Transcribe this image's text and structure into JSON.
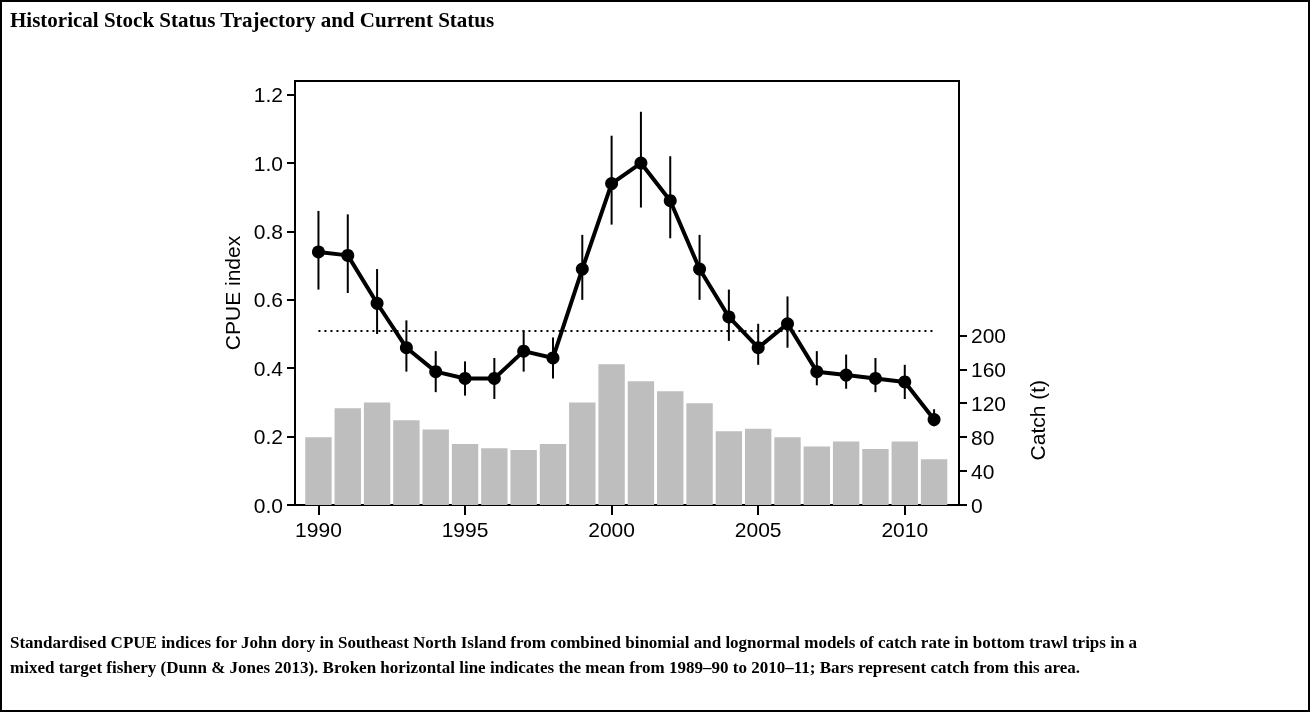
{
  "chart_data": {
    "type": "line",
    "title": "Historical Stock Status Trajectory and Current Status",
    "ylabel": "CPUE index",
    "y2label": "Catch (t)",
    "x": [
      1990,
      1991,
      1992,
      1993,
      1994,
      1995,
      1996,
      1997,
      1998,
      1999,
      2000,
      2001,
      2002,
      2003,
      2004,
      2005,
      2006,
      2007,
      2008,
      2009,
      2010,
      2011
    ],
    "xlim": [
      1989.2,
      2011.85
    ],
    "xticks": [
      1990,
      1995,
      2000,
      2005,
      2010
    ],
    "ylim": [
      0,
      1.24
    ],
    "yticks": [
      {
        "value": 0,
        "label": "0.0"
      },
      0.2,
      0.4,
      0.6,
      0.8,
      {
        "value": 1,
        "label": "1.0"
      },
      1.2
    ],
    "y2lim": [
      0,
      500
    ],
    "y2ticks": [
      0,
      40,
      80,
      120,
      160,
      200
    ],
    "series": [
      {
        "type": "bar",
        "axis": "y2",
        "color": "#bebebe",
        "values": [
          80,
          114,
          121,
          100,
          89,
          72,
          67,
          65,
          72,
          121,
          166,
          146,
          134,
          120,
          87,
          90,
          80,
          69,
          75,
          66,
          75,
          54
        ]
      },
      {
        "color": "#000000",
        "marker": "circle",
        "line_style": "solid",
        "values": [
          0.74,
          0.73,
          0.59,
          0.46,
          0.39,
          0.37,
          0.37,
          0.45,
          0.43,
          0.69,
          0.94,
          1.0,
          0.89,
          0.69,
          0.55,
          0.46,
          0.53,
          0.39,
          0.38,
          0.37,
          0.36,
          0.25
        ],
        "errors": [
          [
            0.63,
            0.86
          ],
          [
            0.62,
            0.85
          ],
          [
            0.5,
            0.69
          ],
          [
            0.39,
            0.54
          ],
          [
            0.33,
            0.45
          ],
          [
            0.32,
            0.42
          ],
          [
            0.31,
            0.43
          ],
          [
            0.39,
            0.51
          ],
          [
            0.37,
            0.49
          ],
          [
            0.6,
            0.79
          ],
          [
            0.82,
            1.08
          ],
          [
            0.87,
            1.15
          ],
          [
            0.78,
            1.02
          ],
          [
            0.6,
            0.79
          ],
          [
            0.48,
            0.63
          ],
          [
            0.41,
            0.53
          ],
          [
            0.46,
            0.61
          ],
          [
            0.35,
            0.45
          ],
          [
            0.34,
            0.44
          ],
          [
            0.33,
            0.43
          ],
          [
            0.31,
            0.41
          ],
          [
            0.23,
            0.28
          ]
        ]
      }
    ],
    "ref_lines": [
      {
        "axis": "y",
        "value": 0.51,
        "line_style": "dotted",
        "color": "#000000"
      }
    ],
    "grid": false,
    "annotations": [
      "Standardised CPUE indices for John dory in Southeast North Island from combined binomial and lognormal models of catch rate in bottom trawl trips in a mixed target fishery (Dunn & Jones 2013). Broken horizontal line indicates the mean from 1989–90 to 2010–11; Bars represent catch from this area."
    ]
  }
}
